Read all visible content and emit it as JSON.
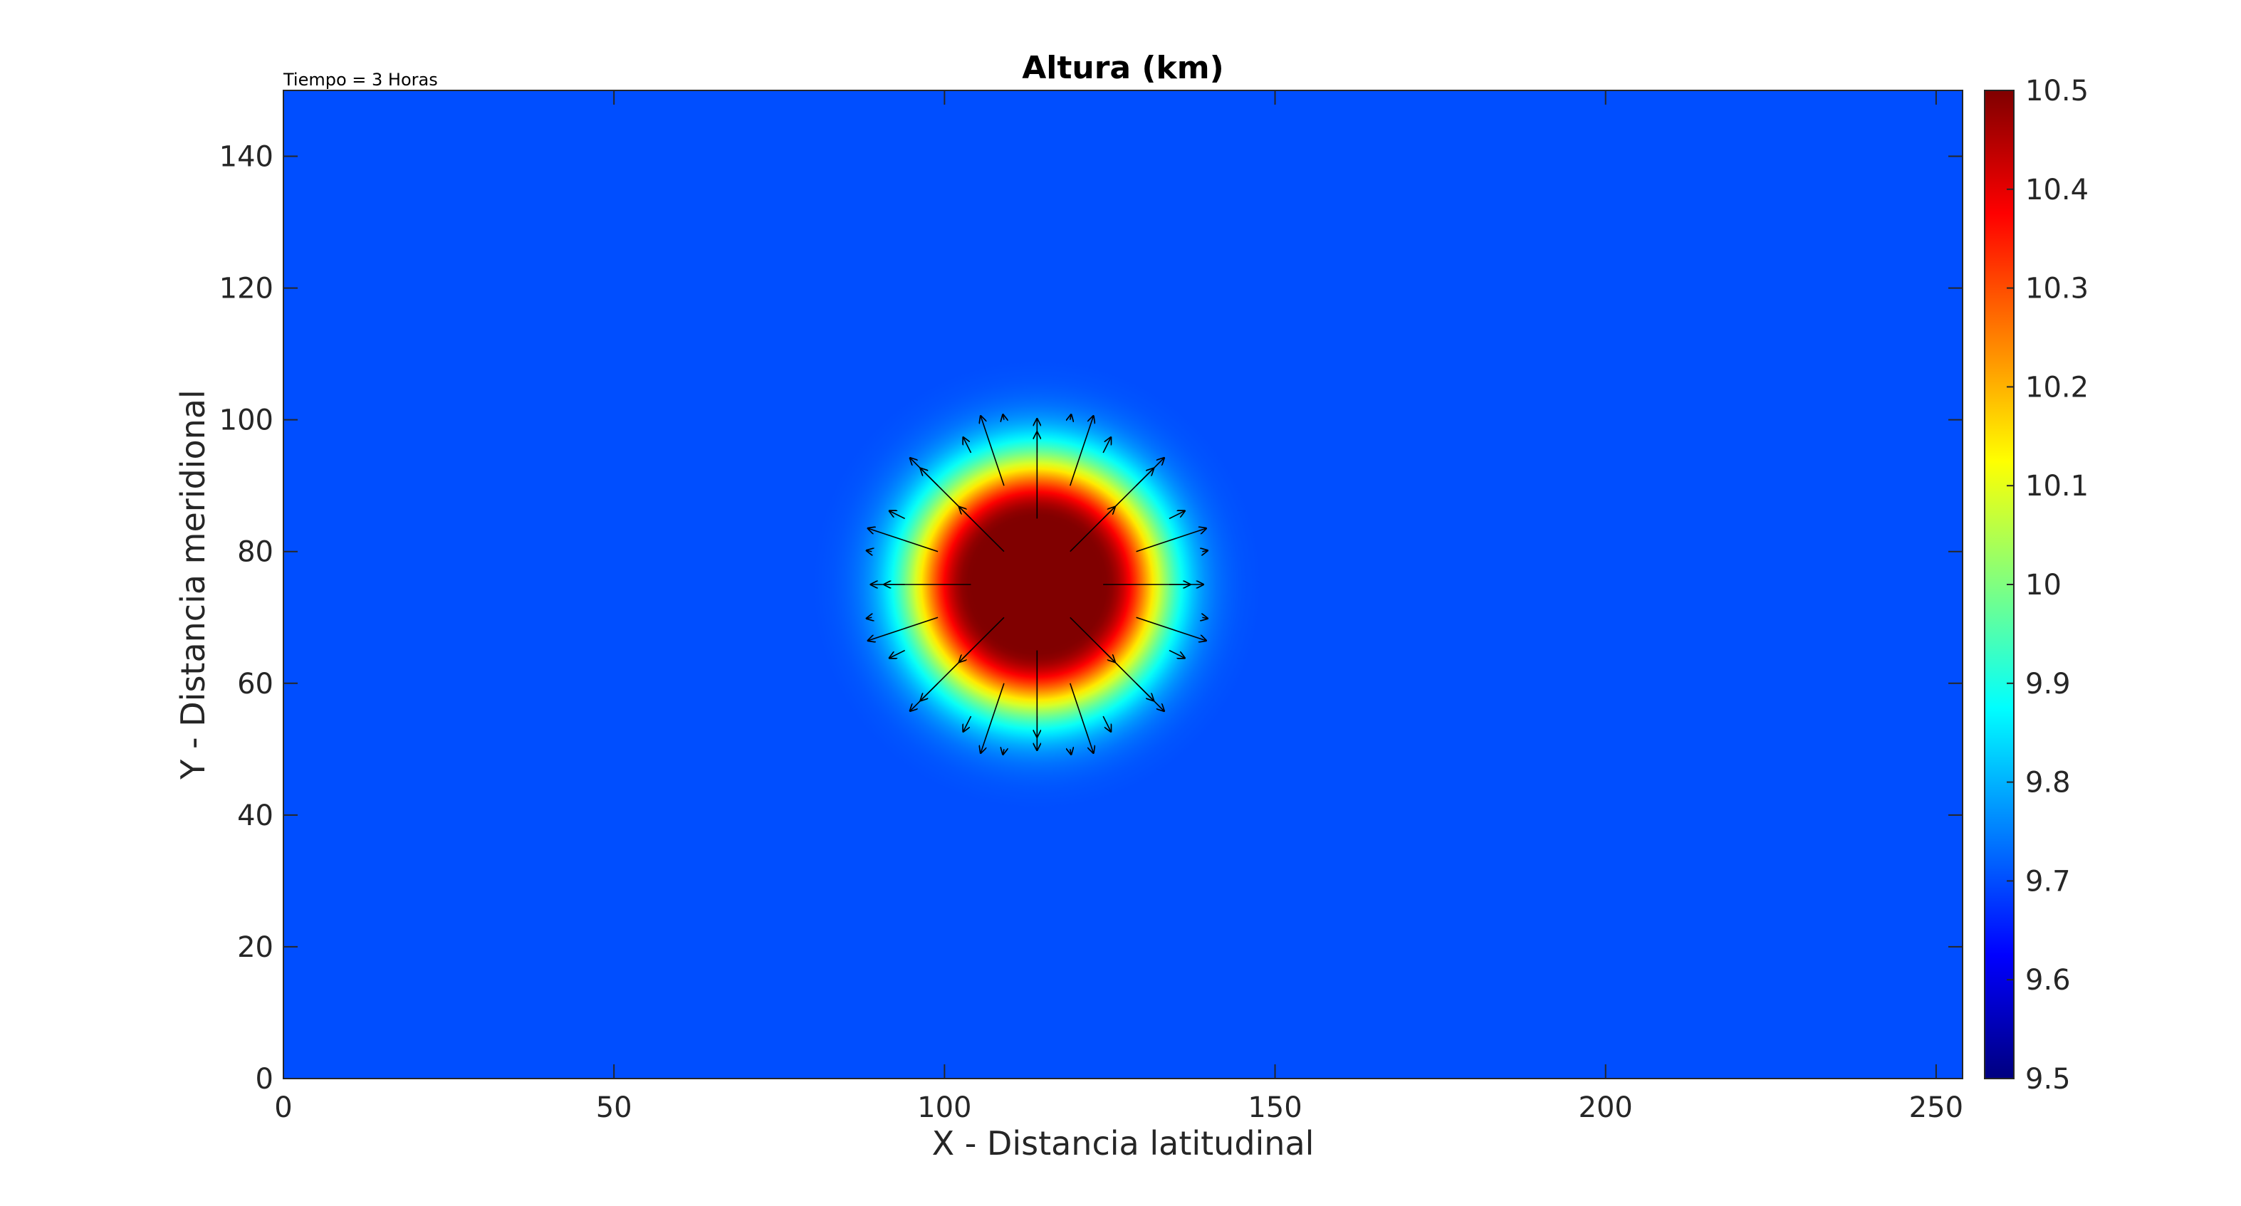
{
  "chart_data": {
    "type": "heatmap",
    "title": "Altura (km)",
    "annotation": "Tiempo = 3 Horas",
    "xlabel": "X - Distancia latitudinal",
    "ylabel": "Y - Distancia meridional",
    "xlim": [
      0,
      254
    ],
    "ylim": [
      0,
      150
    ],
    "xticks": [
      0,
      50,
      100,
      150,
      200,
      250
    ],
    "yticks": [
      0,
      20,
      40,
      60,
      80,
      100,
      120,
      140
    ],
    "colorbar": {
      "colormap": "jet",
      "clim": [
        9.5,
        10.5
      ],
      "ticks": [
        9.5,
        9.6,
        9.7,
        9.8,
        9.9,
        10,
        10.1,
        10.2,
        10.3,
        10.4,
        10.5
      ]
    },
    "field": {
      "background_value": 9.7,
      "peak_value": 10.5,
      "peak_center": [
        114,
        75
      ],
      "core_radius": 10,
      "outer_radius": 35
    },
    "quiver": {
      "color": "#000000",
      "center": [
        114,
        75
      ]
    },
    "grid": false,
    "legend": "none"
  }
}
